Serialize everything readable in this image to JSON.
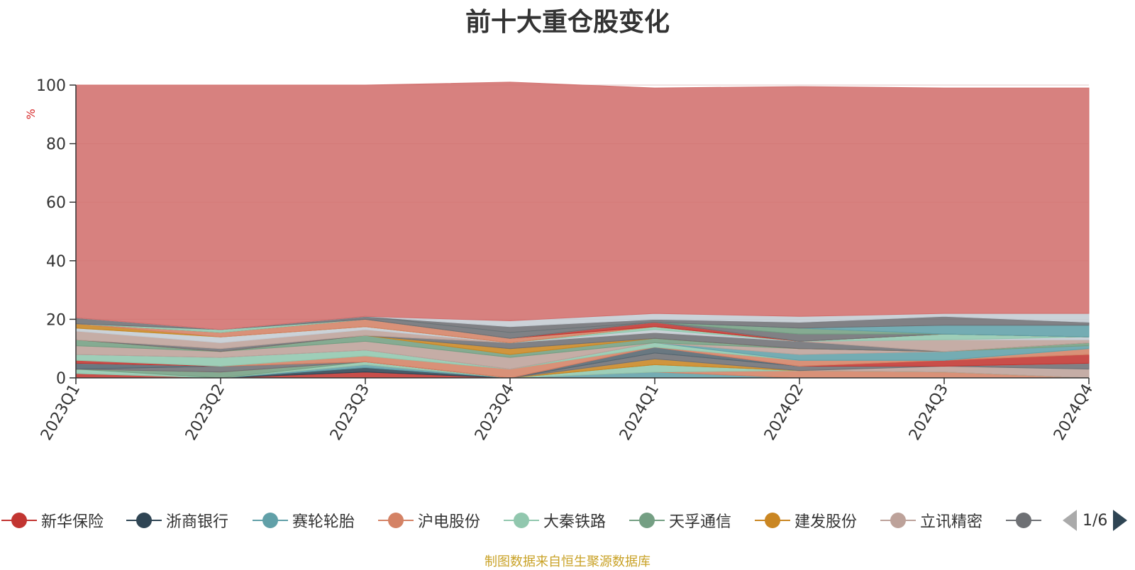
{
  "chart_data": {
    "type": "area",
    "title": "前十大重仓股变化",
    "unit_label": "%",
    "categories": [
      "2023Q1",
      "2023Q2",
      "2023Q3",
      "2023Q4",
      "2024Q1",
      "2024Q2",
      "2024Q3",
      "2024Q4"
    ],
    "ylim": [
      0,
      100
    ],
    "yticks": [
      0,
      20,
      40,
      60,
      80,
      100
    ],
    "grid": true,
    "stacked": true,
    "series": [
      {
        "name": "新华保险",
        "color": "#c23531",
        "values": [
          1.5,
          0.0,
          2.0,
          0.0,
          0.0,
          0.0,
          0.0,
          0.0
        ]
      },
      {
        "name": "浙商银行",
        "color": "#2f4554",
        "values": [
          0.0,
          0.0,
          1.5,
          0.0,
          0.0,
          0.0,
          0.0,
          0.0
        ]
      },
      {
        "name": "赛轮轮胎",
        "color": "#61a0a8",
        "values": [
          0.0,
          0.0,
          1.0,
          0.0,
          2.0,
          0.0,
          0.0,
          0.0
        ]
      },
      {
        "name": "沪电股份",
        "color": "#d48265",
        "values": [
          0.0,
          0.0,
          0.0,
          0.0,
          0.0,
          2.5,
          2.0,
          0.0
        ]
      },
      {
        "name": "大秦铁路",
        "color": "#91c7ae",
        "values": [
          1.5,
          0.0,
          1.0,
          0.0,
          2.5,
          0.0,
          0.0,
          0.0
        ]
      },
      {
        "name": "天孚通信",
        "color": "#749f83",
        "values": [
          0.0,
          2.0,
          0.0,
          0.0,
          0.0,
          0.0,
          0.0,
          0.0
        ]
      },
      {
        "name": "建发股份",
        "color": "#ca8622",
        "values": [
          0.0,
          0.0,
          0.0,
          0.0,
          2.0,
          0.0,
          0.0,
          0.0
        ]
      },
      {
        "name": "立讯精密",
        "color": "#bda29a",
        "values": [
          0.0,
          0.0,
          0.0,
          0.0,
          0.0,
          0.0,
          2.0,
          3.0
        ]
      },
      {
        "name": "",
        "color": "#6e7074",
        "values": [
          0.0,
          2.0,
          0.0,
          0.0,
          2.0,
          1.5,
          0.0,
          2.0
        ]
      },
      {
        "name": "",
        "color": "#546570",
        "values": [
          2.0,
          0.0,
          0.0,
          0.0,
          2.0,
          0.0,
          0.0,
          0.0
        ]
      },
      {
        "name": "",
        "color": "#c4ccd3",
        "values": [
          0.0,
          0.0,
          0.0,
          0.0,
          0.0,
          0.0,
          0.0,
          0.0
        ]
      },
      {
        "name": "",
        "color": "#c23531",
        "values": [
          1.0,
          0.0,
          0.0,
          0.0,
          0.0,
          0.0,
          2.0,
          3.0
        ]
      },
      {
        "name": "",
        "color": "#d48265",
        "values": [
          0.0,
          0.0,
          2.0,
          3.0,
          0.0,
          2.0,
          0.0,
          2.0
        ]
      },
      {
        "name": "",
        "color": "#91c7ae",
        "values": [
          2.0,
          3.0,
          2.0,
          0.0,
          1.5,
          0.0,
          0.0,
          0.0
        ]
      },
      {
        "name": "",
        "color": "#61a0a8",
        "values": [
          0.0,
          0.0,
          0.0,
          0.0,
          0.0,
          2.0,
          3.0,
          1.0
        ]
      },
      {
        "name": "",
        "color": "#bda29a",
        "values": [
          3.0,
          2.0,
          3.0,
          4.0,
          0.0,
          2.0,
          0.0,
          0.0
        ]
      },
      {
        "name": "",
        "color": "#749f83",
        "values": [
          2.0,
          0.0,
          2.0,
          1.0,
          1.5,
          0.0,
          0.0,
          1.0
        ]
      },
      {
        "name": "",
        "color": "#ca8622",
        "values": [
          0.0,
          0.0,
          0.0,
          2.0,
          0.0,
          0.0,
          0.0,
          0.0
        ]
      },
      {
        "name": "",
        "color": "#6e7074",
        "values": [
          0.0,
          1.0,
          0.0,
          2.0,
          2.0,
          2.5,
          0.0,
          0.0
        ]
      },
      {
        "name": "",
        "color": "#bda29a",
        "values": [
          3.0,
          2.0,
          2.0,
          0.0,
          0.0,
          0.0,
          4.0,
          1.0
        ]
      },
      {
        "name": "",
        "color": "#c4ccd3",
        "values": [
          1.0,
          2.0,
          1.0,
          0.0,
          1.0,
          0.0,
          0.0,
          1.0
        ]
      },
      {
        "name": "",
        "color": "#91c7ae",
        "values": [
          0.0,
          0.0,
          0.0,
          0.0,
          1.0,
          0.0,
          2.0,
          0.0
        ]
      },
      {
        "name": "",
        "color": "#ca8622",
        "values": [
          1.5,
          0.0,
          0.0,
          0.0,
          0.0,
          0.0,
          0.0,
          0.0
        ]
      },
      {
        "name": "",
        "color": "#d48265",
        "values": [
          0.0,
          1.5,
          2.5,
          1.5,
          0.0,
          0.0,
          0.0,
          0.0
        ]
      },
      {
        "name": "",
        "color": "#c23531",
        "values": [
          0.0,
          0.0,
          0.0,
          0.0,
          1.5,
          0.0,
          0.0,
          0.0
        ]
      },
      {
        "name": "",
        "color": "#91c7ae",
        "values": [
          0.0,
          1.0,
          0.0,
          0.0,
          0.0,
          0.0,
          0.0,
          0.0
        ]
      },
      {
        "name": "",
        "color": "#6e7074",
        "values": [
          2.0,
          0.0,
          1.0,
          2.0,
          0.0,
          2.5,
          0.0,
          0.0
        ]
      },
      {
        "name": "",
        "color": "#749f83",
        "values": [
          0.0,
          0.0,
          0.0,
          0.0,
          0.0,
          2.0,
          0.0,
          0.0
        ]
      },
      {
        "name": "",
        "color": "#61a0a8",
        "values": [
          0.0,
          0.0,
          0.0,
          0.0,
          0.0,
          0.0,
          3.0,
          4.0
        ]
      },
      {
        "name": "",
        "color": "#6e7074",
        "values": [
          0.0,
          0.0,
          0.0,
          2.0,
          1.0,
          2.0,
          3.0,
          1.0
        ]
      },
      {
        "name": "",
        "color": "#c4ccd3",
        "values": [
          0.0,
          0.0,
          0.0,
          2.0,
          2.0,
          2.0,
          1.0,
          3.0
        ]
      },
      {
        "name": "",
        "color": "#d26f6d",
        "values": [
          79.5,
          83.5,
          79.0,
          81.5,
          77.0,
          78.5,
          77.0,
          77.0
        ]
      }
    ]
  },
  "legend": {
    "items": [
      {
        "label": "新华保险",
        "color": "#c23531"
      },
      {
        "label": "浙商银行",
        "color": "#2f4554"
      },
      {
        "label": "赛轮轮胎",
        "color": "#61a0a8"
      },
      {
        "label": "沪电股份",
        "color": "#d48265"
      },
      {
        "label": "大秦铁路",
        "color": "#91c7ae"
      },
      {
        "label": "天孚通信",
        "color": "#749f83"
      },
      {
        "label": "建发股份",
        "color": "#ca8622"
      },
      {
        "label": "立讯精密",
        "color": "#bda29a"
      },
      {
        "label": "",
        "color": "#6e7074"
      }
    ],
    "page": "1/6"
  },
  "source": "制图数据来自恒生聚源数据库"
}
